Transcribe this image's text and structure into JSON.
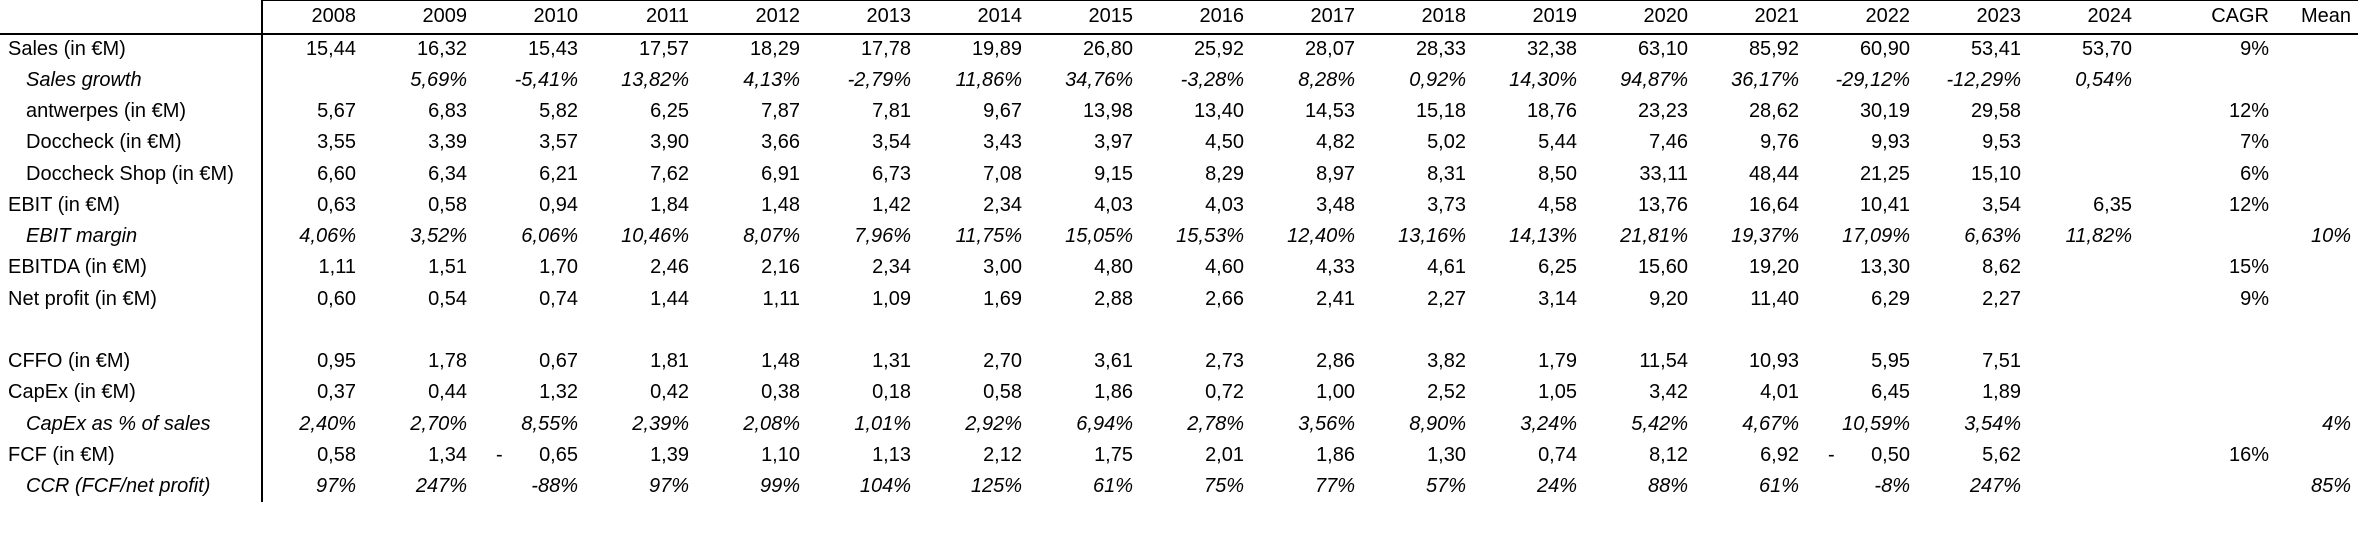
{
  "accounting_minus_glyph": "-",
  "colors": {
    "text": "#000000",
    "border": "#000000",
    "background": "#ffffff"
  },
  "table": {
    "corner_label": "",
    "columns": [
      "2008",
      "2009",
      "2010",
      "2011",
      "2012",
      "2013",
      "2014",
      "2015",
      "2016",
      "2017",
      "2018",
      "2019",
      "2020",
      "2021",
      "2022",
      "2023",
      "2024",
      "CAGR",
      "Mean"
    ],
    "rows": [
      {
        "label": "Sales (in €M)",
        "italic": false,
        "indent": false,
        "blank": false,
        "values": [
          "15,44",
          "16,32",
          "15,43",
          "17,57",
          "18,29",
          "17,78",
          "19,89",
          "26,80",
          "25,92",
          "28,07",
          "28,33",
          "32,38",
          "63,10",
          "85,92",
          "60,90",
          "53,41",
          "53,70",
          "9%",
          ""
        ]
      },
      {
        "label": "Sales growth",
        "italic": true,
        "indent": true,
        "blank": false,
        "values": [
          "",
          "5,69%",
          "-5,41%",
          "13,82%",
          "4,13%",
          "-2,79%",
          "11,86%",
          "34,76%",
          "-3,28%",
          "8,28%",
          "0,92%",
          "14,30%",
          "94,87%",
          "36,17%",
          "-29,12%",
          "-12,29%",
          "0,54%",
          "",
          ""
        ]
      },
      {
        "label": "antwerpes (in €M)",
        "italic": false,
        "indent": true,
        "blank": false,
        "values": [
          "5,67",
          "6,83",
          "5,82",
          "6,25",
          "7,87",
          "7,81",
          "9,67",
          "13,98",
          "13,40",
          "14,53",
          "15,18",
          "18,76",
          "23,23",
          "28,62",
          "30,19",
          "29,58",
          "",
          "12%",
          ""
        ]
      },
      {
        "label": "Doccheck (in €M)",
        "italic": false,
        "indent": true,
        "blank": false,
        "values": [
          "3,55",
          "3,39",
          "3,57",
          "3,90",
          "3,66",
          "3,54",
          "3,43",
          "3,97",
          "4,50",
          "4,82",
          "5,02",
          "5,44",
          "7,46",
          "9,76",
          "9,93",
          "9,53",
          "",
          "7%",
          ""
        ]
      },
      {
        "label": "Doccheck Shop (in €M)",
        "italic": false,
        "indent": true,
        "blank": false,
        "values": [
          "6,60",
          "6,34",
          "6,21",
          "7,62",
          "6,91",
          "6,73",
          "7,08",
          "9,15",
          "8,29",
          "8,97",
          "8,31",
          "8,50",
          "33,11",
          "48,44",
          "21,25",
          "15,10",
          "",
          "6%",
          ""
        ]
      },
      {
        "label": "EBIT (in €M)",
        "italic": false,
        "indent": false,
        "blank": false,
        "values": [
          "0,63",
          "0,58",
          "0,94",
          "1,84",
          "1,48",
          "1,42",
          "2,34",
          "4,03",
          "4,03",
          "3,48",
          "3,73",
          "4,58",
          "13,76",
          "16,64",
          "10,41",
          "3,54",
          "6,35",
          "12%",
          ""
        ]
      },
      {
        "label": "EBIT margin",
        "italic": true,
        "indent": true,
        "blank": false,
        "values": [
          "4,06%",
          "3,52%",
          "6,06%",
          "10,46%",
          "8,07%",
          "7,96%",
          "11,75%",
          "15,05%",
          "15,53%",
          "12,40%",
          "13,16%",
          "14,13%",
          "21,81%",
          "19,37%",
          "17,09%",
          "6,63%",
          "11,82%",
          "",
          "10%"
        ]
      },
      {
        "label": "EBITDA (in €M)",
        "italic": false,
        "indent": false,
        "blank": false,
        "values": [
          "1,11",
          "1,51",
          "1,70",
          "2,46",
          "2,16",
          "2,34",
          "3,00",
          "4,80",
          "4,60",
          "4,33",
          "4,61",
          "6,25",
          "15,60",
          "19,20",
          "13,30",
          "8,62",
          "",
          "15%",
          ""
        ]
      },
      {
        "label": "Net profit (in €M)",
        "italic": false,
        "indent": false,
        "blank": false,
        "values": [
          "0,60",
          "0,54",
          "0,74",
          "1,44",
          "1,11",
          "1,09",
          "1,69",
          "2,88",
          "2,66",
          "2,41",
          "2,27",
          "3,14",
          "9,20",
          "11,40",
          "6,29",
          "2,27",
          "",
          "9%",
          ""
        ]
      },
      {
        "label": "",
        "italic": false,
        "indent": false,
        "blank": true,
        "values": [
          "",
          "",
          "",
          "",
          "",
          "",
          "",
          "",
          "",
          "",
          "",
          "",
          "",
          "",
          "",
          "",
          "",
          "",
          ""
        ]
      },
      {
        "label": "CFFO (in €M)",
        "italic": false,
        "indent": false,
        "blank": false,
        "values": [
          "0,95",
          "1,78",
          "0,67",
          "1,81",
          "1,48",
          "1,31",
          "2,70",
          "3,61",
          "2,73",
          "2,86",
          "3,82",
          "1,79",
          "11,54",
          "10,93",
          "5,95",
          "7,51",
          "",
          "",
          ""
        ]
      },
      {
        "label": "CapEx (in €M)",
        "italic": false,
        "indent": false,
        "blank": false,
        "values": [
          "0,37",
          "0,44",
          "1,32",
          "0,42",
          "0,38",
          "0,18",
          "0,58",
          "1,86",
          "0,72",
          "1,00",
          "2,52",
          "1,05",
          "3,42",
          "4,01",
          "6,45",
          "1,89",
          "",
          "",
          ""
        ]
      },
      {
        "label": "CapEx as % of sales",
        "italic": true,
        "indent": true,
        "blank": false,
        "values": [
          "2,40%",
          "2,70%",
          "8,55%",
          "2,39%",
          "2,08%",
          "1,01%",
          "2,92%",
          "6,94%",
          "2,78%",
          "3,56%",
          "8,90%",
          "3,24%",
          "5,42%",
          "4,67%",
          "10,59%",
          "3,54%",
          "",
          "",
          "4%"
        ]
      },
      {
        "label": "FCF (in €M)",
        "italic": false,
        "indent": false,
        "blank": false,
        "values": [
          "0,58",
          "1,34",
          {
            "neg": "0,65"
          },
          "1,39",
          "1,10",
          "1,13",
          "2,12",
          "1,75",
          "2,01",
          "1,86",
          "1,30",
          "0,74",
          "8,12",
          "6,92",
          {
            "neg": "0,50"
          },
          "5,62",
          "",
          "16%",
          ""
        ]
      },
      {
        "label": "CCR (FCF/net profit)",
        "italic": true,
        "indent": true,
        "blank": false,
        "values": [
          "97%",
          "247%",
          "-88%",
          "97%",
          "99%",
          "104%",
          "125%",
          "61%",
          "75%",
          "77%",
          "57%",
          "24%",
          "88%",
          "61%",
          "-8%",
          "247%",
          "",
          "",
          "85%"
        ]
      }
    ]
  }
}
